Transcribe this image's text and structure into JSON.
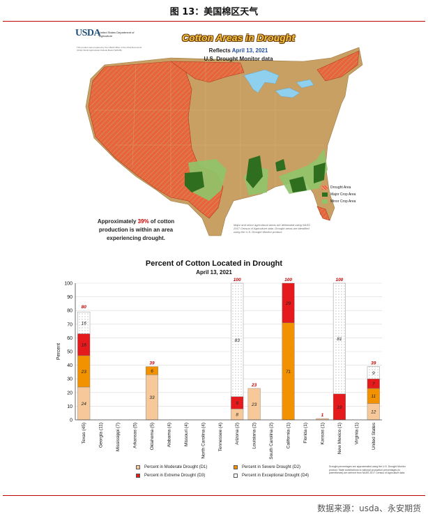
{
  "figure": {
    "caption": "图 13：美国棉区天气",
    "source": "数据来源：usda、永安期货"
  },
  "map": {
    "logo_text": "USDA",
    "dept_text": "United States Department of Agriculture",
    "prep_note": "This product was prepared by the USDA Office of the Chief Economist (OCE) World Agricultural Outlook Board (WAOB)",
    "title": "Cotton Areas in Drought",
    "reflects_label": "Reflects",
    "date": "April 13, 2021",
    "data_source": "U.S. Drought Monitor data",
    "callout_pre": "Approximately",
    "callout_pct": "39%",
    "callout_post": "of cotton production is within an area experiencing drought.",
    "note": "Major and minor agricultural areas are delineated using NASS 2017 Census of Agriculture data. Drought areas are identified using the U.S. Drought Monitor product.",
    "legend": {
      "drought": "Drought Area",
      "major": "Major Crop Area",
      "minor": "Minor Crop Area"
    },
    "colors": {
      "land": "#c9a063",
      "water": "#8fd0ee",
      "drought": "#e8643c",
      "major": "#2f6e1f",
      "minor": "#8fc46a"
    }
  },
  "chart_data": {
    "type": "bar",
    "stacked": true,
    "title": "Percent of Cotton Located in Drought",
    "subtitle": "April 13, 2021",
    "ylabel": "Percent",
    "ylim": [
      0,
      100
    ],
    "yticks": [
      0,
      10,
      20,
      30,
      40,
      50,
      60,
      70,
      80,
      90,
      100
    ],
    "categories": [
      "Texas (45)",
      "Georgia (11)",
      "Mississippi (7)",
      "Arkansas (5)",
      "Oklahoma (5)",
      "Alabama (4)",
      "Missouri (4)",
      "North Carolina (4)",
      "Tennessee (4)",
      "Arizona (2)",
      "Louisiana (2)",
      "South Carolina (2)",
      "California (1)",
      "Florida (1)",
      "Kansas (1)",
      "New Mexico (1)",
      "Virginia (1)",
      "United States"
    ],
    "series": [
      {
        "name": "Percent in Moderate Drought (D1)",
        "color": "#f7c99a",
        "values": [
          24,
          0,
          0,
          0,
          33,
          0,
          0,
          0,
          0,
          8,
          23,
          0,
          0,
          0,
          1,
          0,
          0,
          12
        ]
      },
      {
        "name": "Percent in Severe Drought (D2)",
        "color": "#f39200",
        "values": [
          23,
          0,
          0,
          0,
          6,
          0,
          0,
          0,
          0,
          0,
          0,
          0,
          71,
          0,
          0,
          0,
          0,
          11
        ]
      },
      {
        "name": "Percent in Extreme Drought (D3)",
        "color": "#e41a1c",
        "values": [
          16,
          0,
          0,
          0,
          0,
          0,
          0,
          0,
          0,
          9,
          0,
          0,
          29,
          0,
          0,
          19,
          0,
          7
        ]
      },
      {
        "name": "Percent in Exceptional Drought (D4)",
        "color": "#ffffff",
        "values": [
          16,
          0,
          0,
          0,
          0,
          0,
          0,
          0,
          0,
          83,
          0,
          0,
          0,
          0,
          0,
          81,
          0,
          9
        ]
      }
    ],
    "totals": [
      80,
      null,
      null,
      null,
      39,
      null,
      null,
      null,
      null,
      100,
      23,
      null,
      100,
      null,
      1,
      100,
      null,
      39
    ],
    "footnote": "Drought percentages are approximated using the U.S. Drought Monitor product. State contributions to national production percentages (in parentheses) are derived from NASS 2017 Census of Agriculture data."
  }
}
